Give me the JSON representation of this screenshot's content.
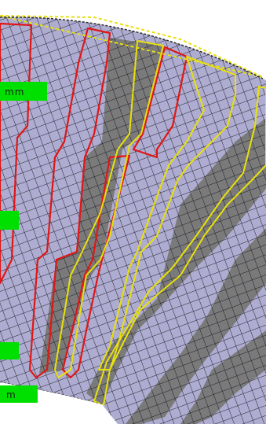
{
  "view": {
    "background": "#ffffff"
  },
  "legend": {
    "tags": [
      {
        "id": "tag-upper",
        "text": "mm"
      },
      {
        "id": "tag-middle",
        "text": ""
      },
      {
        "id": "tag-lower",
        "text": ""
      },
      {
        "id": "tag-bottom",
        "text": "m"
      }
    ]
  },
  "colors": {
    "mesh_fill": "#aeacd0",
    "mesh_fill_dark": "#7a7a7a",
    "mesh_line": "#1e1e2a",
    "outline_red": "#e01616",
    "outline_yellow": "#e8e00c",
    "tag_fill": "#00e000",
    "outer_arc": "#2b2b2b"
  }
}
